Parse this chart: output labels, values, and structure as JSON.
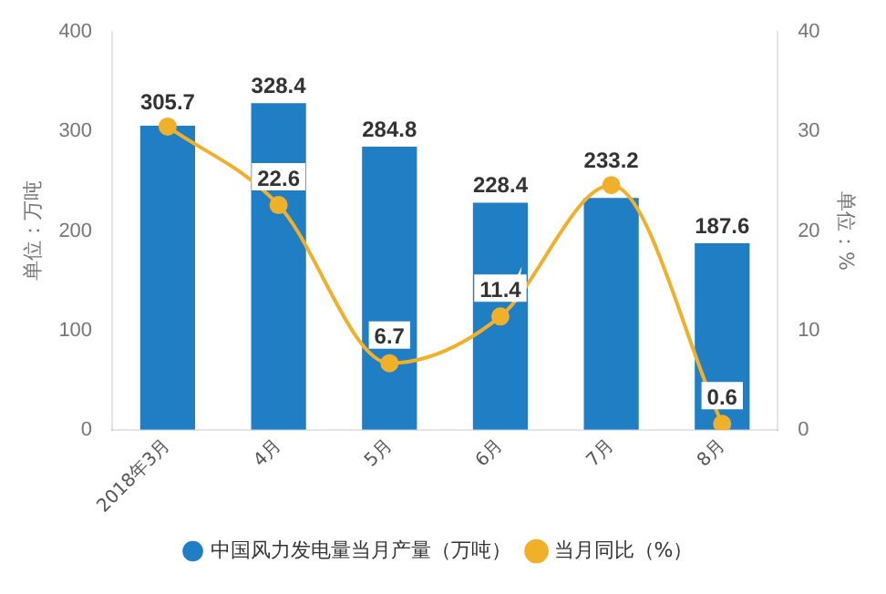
{
  "chart_data": {
    "type": "bar",
    "categories": [
      "2018年3月",
      "4月",
      "5月",
      "6月",
      "7月",
      "8月"
    ],
    "ylabel": "单位：万吨",
    "y2label": "单位：%",
    "ylim": [
      0,
      400
    ],
    "yticks": [
      0,
      100,
      200,
      300,
      400
    ],
    "y2lim": [
      0,
      40
    ],
    "y2ticks": [
      0,
      10,
      20,
      30,
      40
    ],
    "series": [
      {
        "name": "中国风力发电量当月产量（万吨）",
        "color": "#1f7ec4",
        "values": [
          305.7,
          328.4,
          284.8,
          228.4,
          233.2,
          187.6
        ],
        "value_labels": [
          "305.7",
          "328.4",
          "284.8",
          "228.4",
          "233.2",
          "187.6"
        ]
      },
      {
        "name": "当月同比（%）",
        "type": "line",
        "axis": "y2",
        "color": "#f0b02a",
        "marker": "circle",
        "values": [
          30.5,
          22.6,
          6.7,
          11.4,
          24.6,
          0.6
        ],
        "value_labels": [
          null,
          "22.6",
          "6.7",
          "11.4",
          null,
          "0.6"
        ]
      }
    ],
    "legend": "bottom",
    "grid": false
  }
}
